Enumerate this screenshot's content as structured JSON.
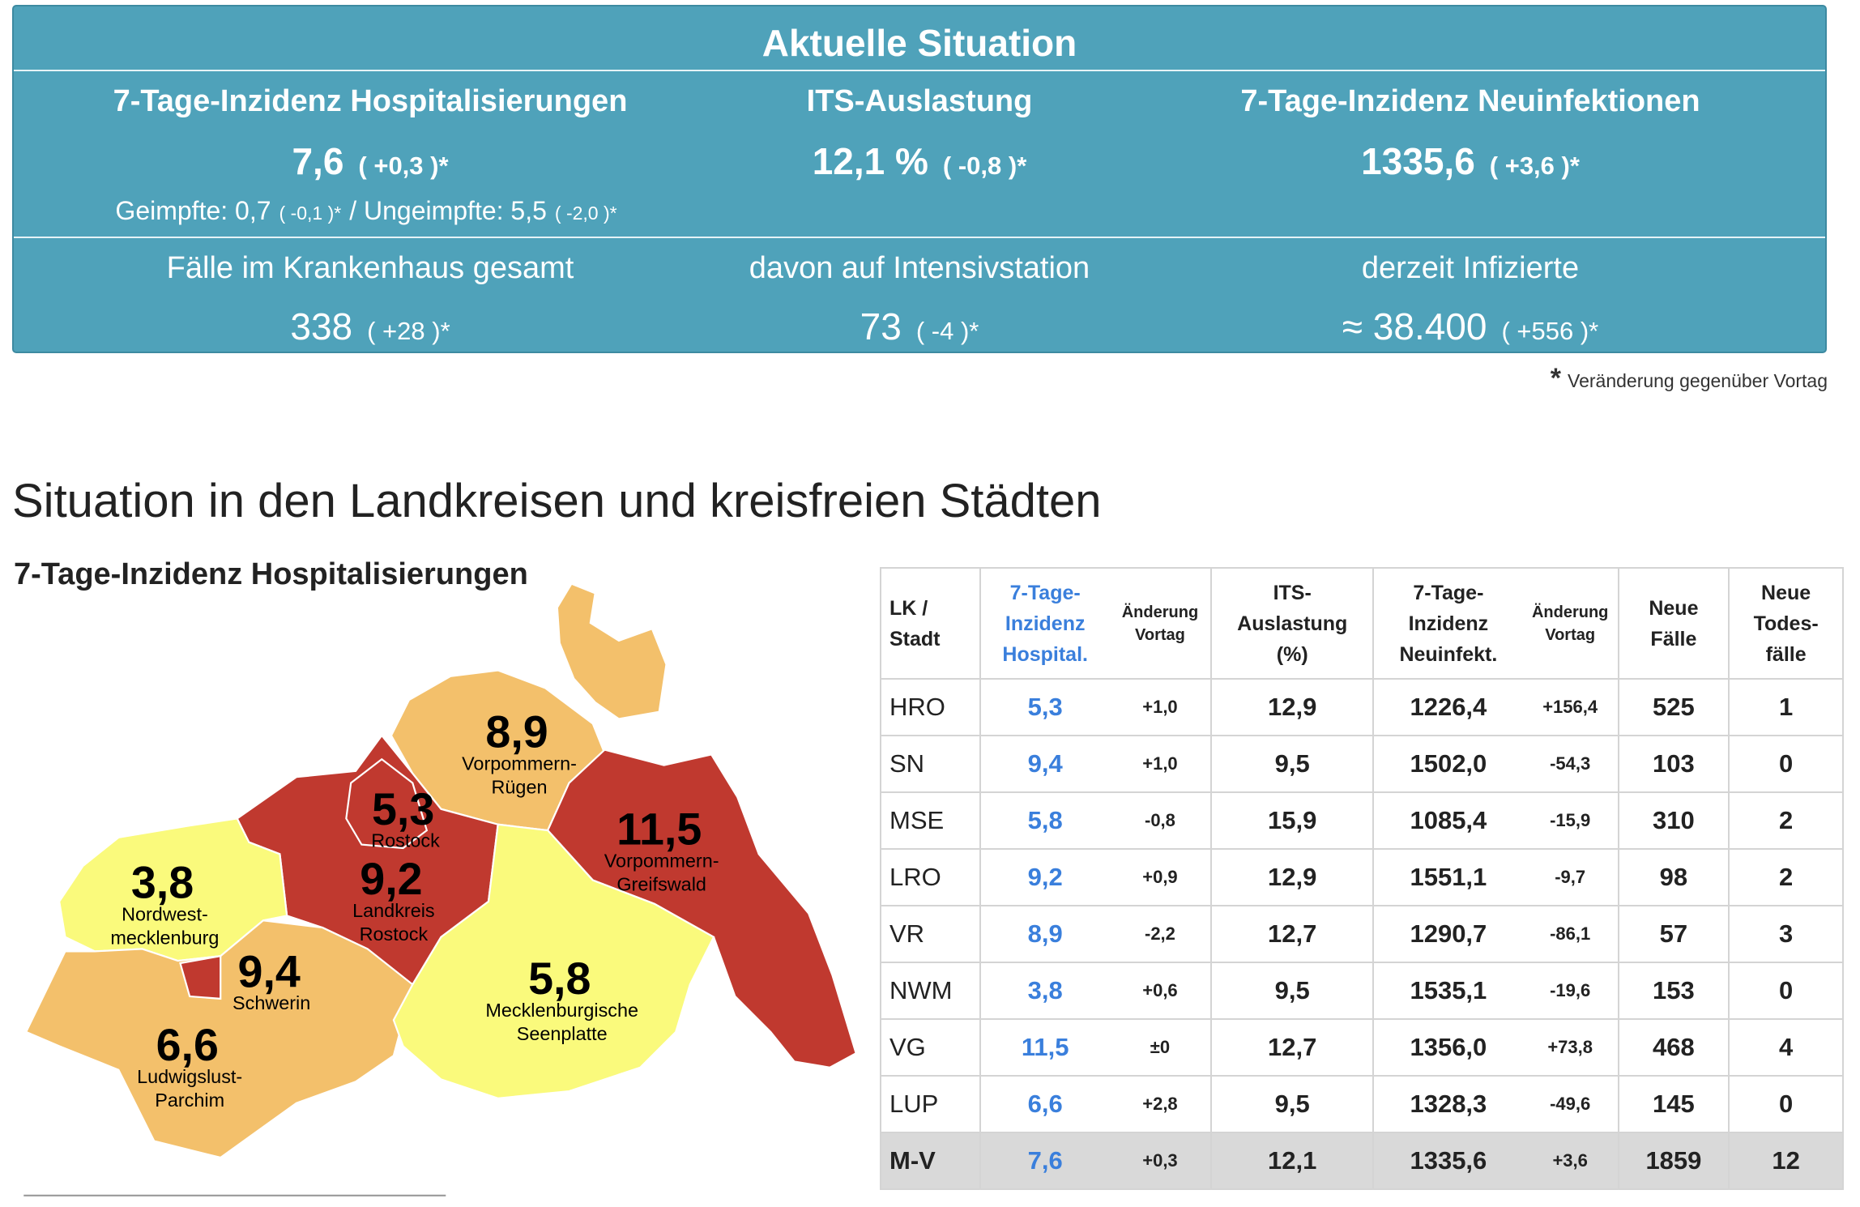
{
  "summary": {
    "title": "Aktuelle Situation",
    "top": [
      {
        "label": "7-Tage-Inzidenz Hospitalisierungen",
        "value": "7,6",
        "change": "( +0,3 )*"
      },
      {
        "label": "ITS-Auslastung",
        "value": "12,1 %",
        "change": "( -0,8 )*"
      },
      {
        "label": "7-Tage-Inzidenz Neuinfektionen",
        "value": "1335,6",
        "change": "( +3,6 )*"
      }
    ],
    "vaccinated": {
      "label": "Geimpfte: 0,7",
      "change": "( -0,1 )*",
      "separator": "/",
      "label2": "Ungeimpfte: 5,5",
      "change2": "( -2,0 )*"
    },
    "bottom": [
      {
        "label": "Fälle im Krankenhaus gesamt",
        "value": "338",
        "change": "( +28 )*"
      },
      {
        "label": "davon auf Intensivstation",
        "value": "73",
        "change": "( -4 )*"
      },
      {
        "label": "derzeit Infizierte",
        "value": "≈ 38.400",
        "change": "( +556 )*"
      }
    ],
    "footnote": {
      "mark": "*",
      "text": "Veränderung gegenüber Vortag"
    }
  },
  "section_title": "Situation in den Landkreisen und kreisfreien Städten",
  "map": {
    "title": "7-Tage-Inzidenz Hospitalisierungen",
    "regions": [
      {
        "value": "8,9",
        "name": [
          "Vorpommern-",
          "Rügen"
        ],
        "color": "#f3c06b"
      },
      {
        "value": "11,5",
        "name": [
          "Vorpommern-",
          "Greifswald"
        ],
        "color": "#c0392f"
      },
      {
        "value": "9,2",
        "name": [
          "Landkreis",
          "Rostock"
        ],
        "color": "#c0392f"
      },
      {
        "value": "5,3",
        "name": [
          "Rostock"
        ],
        "color": "#c0392f"
      },
      {
        "value": "3,8",
        "name": [
          "Nordwest-",
          "mecklenburg"
        ],
        "color": "#fafa7c"
      },
      {
        "value": "6,6",
        "name": [
          "Ludwigslust-",
          "Parchim"
        ],
        "color": "#f3c06b"
      },
      {
        "value": "9,4",
        "name": [
          "Schwerin"
        ],
        "color": "#c0392f"
      },
      {
        "value": "5,8",
        "name": [
          "Mecklenburgische",
          "Seenplatte"
        ],
        "color": "#fafa7c"
      }
    ]
  },
  "table": {
    "header": [
      [
        "LK /",
        "Stadt"
      ],
      [
        "7-Tage-",
        "Inzidenz",
        "Hospital."
      ],
      [
        "Änderung",
        "Vortag"
      ],
      [
        "ITS-",
        "Auslastung",
        "(%)"
      ],
      [
        "7-Tage-",
        "Inzidenz",
        "Neuinfekt."
      ],
      [
        "Änderung",
        "Vortag"
      ],
      [
        "Neue",
        "Fälle"
      ],
      [
        "Neue",
        "Todes-",
        "fälle"
      ]
    ],
    "rows": [
      [
        "HRO",
        "5,3",
        "+1,0",
        "12,9",
        "1226,4",
        "+156,4",
        "525",
        "1"
      ],
      [
        "SN",
        "9,4",
        "+1,0",
        "9,5",
        "1502,0",
        "-54,3",
        "103",
        "0"
      ],
      [
        "MSE",
        "5,8",
        "-0,8",
        "15,9",
        "1085,4",
        "-15,9",
        "310",
        "2"
      ],
      [
        "LRO",
        "9,2",
        "+0,9",
        "12,9",
        "1551,1",
        "-9,7",
        "98",
        "2"
      ],
      [
        "VR",
        "8,9",
        "-2,2",
        "12,7",
        "1290,7",
        "-86,1",
        "57",
        "3"
      ],
      [
        "NWM",
        "3,8",
        "+0,6",
        "9,5",
        "1535,1",
        "-19,6",
        "153",
        "0"
      ],
      [
        "VG",
        "11,5",
        "±0",
        "12,7",
        "1356,0",
        "+73,8",
        "468",
        "4"
      ],
      [
        "LUP",
        "6,6",
        "+2,8",
        "9,5",
        "1328,3",
        "-49,6",
        "145",
        "0"
      ],
      [
        "M-V",
        "7,6",
        "+0,3",
        "12,1",
        "1335,6",
        "+3,6",
        "1859",
        "12"
      ]
    ]
  }
}
